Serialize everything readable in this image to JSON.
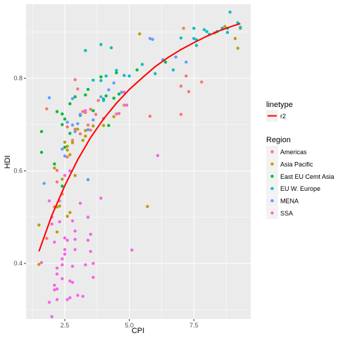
{
  "chart_data": {
    "type": "scatter",
    "xlabel": "CPI",
    "ylabel": "HDI",
    "xlim": [
      1.0,
      9.7
    ],
    "ylim": [
      0.28,
      0.96
    ],
    "x_ticks": [
      2.5,
      5.0,
      7.5
    ],
    "x_tick_labels": [
      "2.5",
      "5.0",
      "7.5"
    ],
    "y_ticks": [
      0.4,
      0.6,
      0.8
    ],
    "y_tick_labels": [
      "0.4",
      "0.6",
      "0.8"
    ],
    "grid": true,
    "legend_placement": "right",
    "colors": {
      "Americas": "#f8766d",
      "Asia Pacific": "#b79f00",
      "East EU Cemt Asia": "#00ba38",
      "EU W. Europe": "#00bfc4",
      "MENA": "#619cff",
      "SSA": "#f564e3",
      "r2": "#ff0000"
    },
    "legends": [
      {
        "title": "linetype",
        "items": [
          "r2"
        ]
      },
      {
        "title": "Region",
        "items": [
          "Americas",
          "Asia Pacific",
          "East EU Cemt Asia",
          "EU W. Europe",
          "MENA",
          "SSA"
        ]
      }
    ],
    "series": [
      {
        "name": "Americas",
        "points": [
          [
            2.9,
            0.797
          ],
          [
            3.2,
            0.728
          ],
          [
            3.3,
            0.726
          ],
          [
            3.5,
            0.733
          ],
          [
            3.7,
            0.722
          ],
          [
            3.4,
            0.699
          ],
          [
            2.9,
            0.69
          ],
          [
            2.8,
            0.666
          ],
          [
            3.5,
            0.688
          ],
          [
            3.1,
            0.68
          ],
          [
            2.6,
            0.63
          ],
          [
            2.2,
            0.601
          ],
          [
            2.4,
            0.55
          ],
          [
            1.8,
            0.454
          ],
          [
            4.0,
            0.713
          ],
          [
            3.8,
            0.752
          ],
          [
            4.6,
            0.724
          ],
          [
            4.8,
            0.742
          ],
          [
            5.8,
            0.718
          ],
          [
            7.2,
            0.805
          ],
          [
            7.0,
            0.783
          ],
          [
            7.3,
            0.771
          ],
          [
            7.8,
            0.792
          ],
          [
            7.0,
            0.722
          ],
          [
            7.1,
            0.908
          ],
          [
            8.6,
            0.908
          ],
          [
            2.2,
            0.576
          ],
          [
            2.1,
            0.522
          ],
          [
            1.8,
            0.734
          ],
          [
            3.0,
            0.777
          ],
          [
            2.6,
            0.695
          ]
        ]
      },
      {
        "name": "Asia Pacific",
        "points": [
          [
            1.5,
            0.483
          ],
          [
            1.5,
            0.398
          ],
          [
            2.2,
            0.468
          ],
          [
            2.2,
            0.522
          ],
          [
            2.3,
            0.524
          ],
          [
            2.4,
            0.582
          ],
          [
            2.6,
            0.502
          ],
          [
            2.7,
            0.51
          ],
          [
            2.9,
            0.59
          ],
          [
            2.6,
            0.653
          ],
          [
            2.5,
            0.662
          ],
          [
            2.7,
            0.635
          ],
          [
            2.8,
            0.661
          ],
          [
            3.3,
            0.675
          ],
          [
            3.0,
            0.69
          ],
          [
            3.3,
            0.687
          ],
          [
            3.6,
            0.697
          ],
          [
            4.0,
            0.698
          ],
          [
            4.4,
            0.717
          ],
          [
            5.4,
            0.896
          ],
          [
            5.7,
            0.523
          ],
          [
            8.3,
            0.898
          ],
          [
            8.7,
            0.912
          ],
          [
            9.3,
            0.908
          ],
          [
            9.1,
            0.886
          ],
          [
            9.2,
            0.865
          ],
          [
            2.6,
            0.645
          ],
          [
            3.2,
            0.666
          ],
          [
            2.1,
            0.606
          ]
        ]
      },
      {
        "name": "East EU Cemt Asia",
        "points": [
          [
            1.6,
            0.685
          ],
          [
            1.6,
            0.64
          ],
          [
            2.1,
            0.615
          ],
          [
            2.2,
            0.728
          ],
          [
            2.4,
            0.723
          ],
          [
            2.5,
            0.712
          ],
          [
            2.4,
            0.7
          ],
          [
            2.5,
            0.651
          ],
          [
            2.7,
            0.681
          ],
          [
            2.7,
            0.745
          ],
          [
            2.9,
            0.76
          ],
          [
            3.3,
            0.764
          ],
          [
            3.1,
            0.72
          ],
          [
            3.4,
            0.776
          ],
          [
            3.6,
            0.73
          ],
          [
            4.0,
            0.755
          ],
          [
            4.1,
            0.762
          ],
          [
            4.4,
            0.757
          ],
          [
            4.6,
            0.766
          ],
          [
            3.9,
            0.803
          ],
          [
            4.5,
            0.812
          ],
          [
            5.3,
            0.818
          ],
          [
            6.4,
            0.835
          ],
          [
            2.4,
            0.567
          ],
          [
            4.2,
            0.698
          ]
        ]
      },
      {
        "name": "EU W. Europe",
        "points": [
          [
            3.3,
            0.86
          ],
          [
            3.6,
            0.796
          ],
          [
            3.9,
            0.873
          ],
          [
            3.9,
            0.795
          ],
          [
            4.1,
            0.805
          ],
          [
            4.3,
            0.866
          ],
          [
            4.5,
            0.817
          ],
          [
            4.8,
            0.806
          ],
          [
            5.0,
            0.805
          ],
          [
            5.5,
            0.83
          ],
          [
            6.0,
            0.81
          ],
          [
            6.3,
            0.84
          ],
          [
            6.7,
            0.818
          ],
          [
            7.0,
            0.887
          ],
          [
            7.5,
            0.908
          ],
          [
            7.5,
            0.886
          ],
          [
            7.6,
            0.883
          ],
          [
            7.9,
            0.905
          ],
          [
            8.0,
            0.901
          ],
          [
            8.1,
            0.895
          ],
          [
            8.4,
            0.901
          ],
          [
            8.6,
            0.908
          ],
          [
            8.8,
            0.908
          ],
          [
            8.9,
            0.943
          ],
          [
            9.2,
            0.92
          ],
          [
            9.3,
            0.91
          ],
          [
            8.8,
            0.899
          ],
          [
            7.6,
            0.871
          ],
          [
            4.0,
            0.752
          ]
        ]
      },
      {
        "name": "MENA",
        "points": [
          [
            1.7,
            0.573
          ],
          [
            1.9,
            0.758
          ],
          [
            2.5,
            0.632
          ],
          [
            2.6,
            0.705
          ],
          [
            2.8,
            0.699
          ],
          [
            2.9,
            0.685
          ],
          [
            3.0,
            0.702
          ],
          [
            3.4,
            0.689
          ],
          [
            3.4,
            0.581
          ],
          [
            3.6,
            0.71
          ],
          [
            3.9,
            0.76
          ],
          [
            4.2,
            0.775
          ],
          [
            4.4,
            0.79
          ],
          [
            4.7,
            0.77
          ],
          [
            5.8,
            0.886
          ],
          [
            5.9,
            0.884
          ],
          [
            6.3,
            0.84
          ],
          [
            6.8,
            0.846
          ],
          [
            7.2,
            0.835
          ],
          [
            2.4,
            0.647
          ],
          [
            3.1,
            0.722
          ],
          [
            2.8,
            0.756
          ]
        ]
      },
      {
        "name": "SSA",
        "points": [
          [
            1.6,
            0.402
          ],
          [
            2.0,
            0.285
          ],
          [
            1.9,
            0.316
          ],
          [
            2.1,
            0.343
          ],
          [
            2.1,
            0.353
          ],
          [
            2.2,
            0.322
          ],
          [
            2.2,
            0.345
          ],
          [
            2.2,
            0.377
          ],
          [
            2.4,
            0.367
          ],
          [
            2.4,
            0.397
          ],
          [
            2.4,
            0.41
          ],
          [
            2.5,
            0.43
          ],
          [
            2.5,
            0.455
          ],
          [
            2.6,
            0.322
          ],
          [
            2.7,
            0.326
          ],
          [
            2.7,
            0.362
          ],
          [
            2.8,
            0.359
          ],
          [
            2.8,
            0.394
          ],
          [
            2.9,
            0.43
          ],
          [
            2.9,
            0.452
          ],
          [
            2.9,
            0.47
          ],
          [
            2.8,
            0.492
          ],
          [
            3.0,
            0.331
          ],
          [
            3.2,
            0.329
          ],
          [
            3.3,
            0.397
          ],
          [
            3.4,
            0.45
          ],
          [
            3.5,
            0.426
          ],
          [
            3.5,
            0.463
          ],
          [
            3.6,
            0.4
          ],
          [
            3.6,
            0.37
          ],
          [
            2.0,
            0.485
          ],
          [
            2.1,
            0.446
          ],
          [
            2.3,
            0.535
          ],
          [
            2.5,
            0.59
          ],
          [
            2.7,
            0.6
          ],
          [
            2.0,
            0.5
          ],
          [
            3.1,
            0.53
          ],
          [
            3.9,
            0.541
          ],
          [
            4.5,
            0.723
          ],
          [
            4.9,
            0.742
          ],
          [
            5.1,
            0.429
          ],
          [
            6.1,
            0.633
          ],
          [
            3.4,
            0.5
          ],
          [
            1.9,
            0.535
          ],
          [
            2.3,
            0.49
          ],
          [
            3.3,
            0.73
          ],
          [
            4.8,
            0.77
          ],
          [
            2.6,
            0.45
          ],
          [
            2.5,
            0.42
          ],
          [
            2.2,
            0.39
          ]
        ]
      }
    ],
    "r2_line": [
      [
        1.5,
        0.426
      ],
      [
        2.0,
        0.504
      ],
      [
        2.5,
        0.568
      ],
      [
        3.0,
        0.624
      ],
      [
        3.5,
        0.672
      ],
      [
        4.0,
        0.712
      ],
      [
        4.5,
        0.746
      ],
      [
        5.0,
        0.776
      ],
      [
        5.5,
        0.801
      ],
      [
        6.0,
        0.825
      ],
      [
        6.5,
        0.845
      ],
      [
        7.0,
        0.862
      ],
      [
        7.5,
        0.877
      ],
      [
        8.0,
        0.891
      ],
      [
        8.5,
        0.903
      ],
      [
        9.0,
        0.913
      ],
      [
        9.3,
        0.918
      ]
    ]
  }
}
